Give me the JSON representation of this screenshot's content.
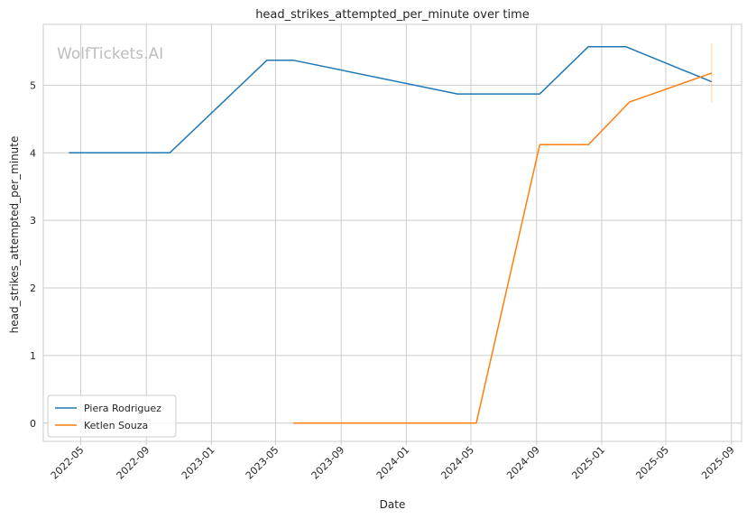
{
  "chart_data": {
    "type": "line",
    "title": "head_strikes_attempted_per_minute over time",
    "xlabel": "Date",
    "ylabel": "head_strikes_attempted_per_minute",
    "watermark": "WolfTickets.AI",
    "xlim": [
      "2022-02-20",
      "2025-09-20"
    ],
    "ylim": [
      -0.27,
      5.9
    ],
    "x_ticks": [
      "2022-05",
      "2022-09",
      "2023-01",
      "2023-05",
      "2023-09",
      "2024-01",
      "2024-05",
      "2024-09",
      "2025-01",
      "2025-05",
      "2025-09"
    ],
    "y_ticks": [
      0,
      1,
      2,
      3,
      4,
      5
    ],
    "grid": true,
    "legend_position": "lower-left",
    "colors": {
      "piera": "#1f77b4",
      "ketlen": "#ff7f0e",
      "grid": "#cccccc",
      "spine": "#cccccc"
    },
    "series": [
      {
        "name": "Piera Rodriguez",
        "color": "#1f77b4",
        "points": [
          {
            "x": "2022-04-09",
            "y": 4.0
          },
          {
            "x": "2022-10-15",
            "y": 4.0
          },
          {
            "x": "2023-04-15",
            "y": 5.37
          },
          {
            "x": "2023-06-03",
            "y": 5.37
          },
          {
            "x": "2024-04-06",
            "y": 4.87
          },
          {
            "x": "2024-09-07",
            "y": 4.87
          },
          {
            "x": "2024-12-07",
            "y": 5.57
          },
          {
            "x": "2025-02-15",
            "y": 5.57
          },
          {
            "x": "2025-07-26",
            "y": 5.05
          }
        ]
      },
      {
        "name": "Ketlen Souza",
        "color": "#ff7f0e",
        "points": [
          {
            "x": "2023-06-03",
            "y": 0.0
          },
          {
            "x": "2024-05-11",
            "y": 0.0
          },
          {
            "x": "2024-09-07",
            "y": 4.12
          },
          {
            "x": "2024-12-07",
            "y": 4.12
          },
          {
            "x": "2025-02-22",
            "y": 4.75
          },
          {
            "x": "2025-07-26",
            "y": 5.18
          }
        ],
        "error_bar_last": [
          4.75,
          5.62
        ]
      }
    ]
  }
}
